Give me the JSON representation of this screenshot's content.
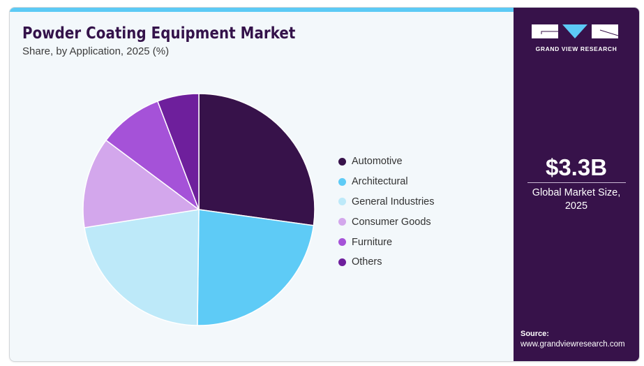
{
  "header": {
    "title": "Powder Coating Equipment Market",
    "subtitle": "Share, by Application, 2025 (%)"
  },
  "brand": {
    "name": "GRAND VIEW RESEARCH",
    "colors": {
      "panel": "#37124a",
      "accent": "#5ccaf5"
    }
  },
  "kpi": {
    "value": "$3.3B",
    "label_line1": "Global Market Size,",
    "label_line2": "2025"
  },
  "source": {
    "label": "Source:",
    "url": "www.grandviewresearch.com"
  },
  "chart_data": {
    "type": "pie",
    "title": "Powder Coating Equipment Market",
    "subtitle": "Share, by Application, 2025 (%)",
    "start_angle": "12 o'clock, clockwise",
    "legend_position": "right",
    "categories": [
      "Automotive",
      "Architectural",
      "General Industries",
      "Consumer Goods",
      "Furniture",
      "Others"
    ],
    "values": [
      27.2,
      23.0,
      22.3,
      12.7,
      9.0,
      5.8
    ],
    "colors": [
      "#37124a",
      "#5ecbf6",
      "#bde9f9",
      "#d3a7ec",
      "#a552d8",
      "#6e1f9c"
    ]
  }
}
